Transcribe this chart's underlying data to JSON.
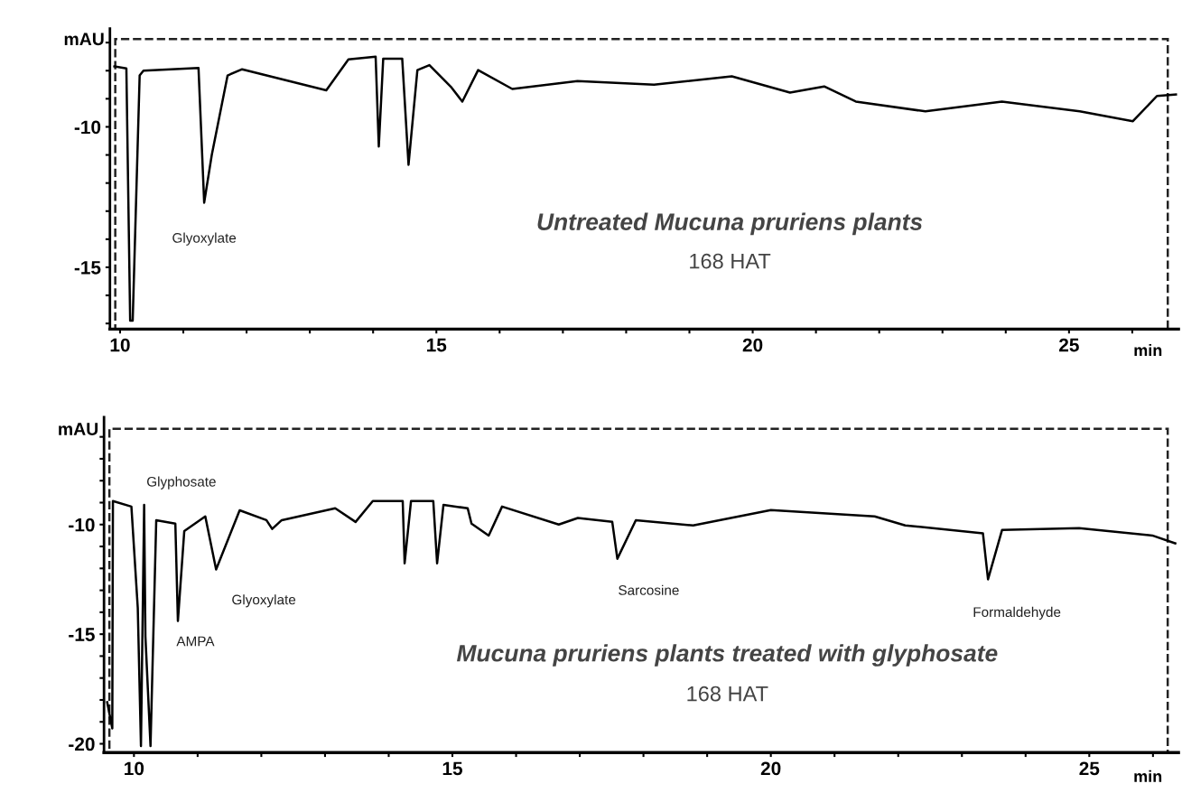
{
  "chart_data": [
    {
      "type": "line",
      "xlabel": "min",
      "ylabel": "mAU",
      "xlim": [
        9.84,
        26.73
      ],
      "ylim": [
        -17.2,
        -6.5
      ],
      "xticks": [
        10,
        {
          "value": 11,
          "label": null
        },
        {
          "value": 12,
          "label": null
        },
        {
          "value": 13,
          "label": null
        },
        {
          "value": 14,
          "label": null
        },
        15,
        {
          "value": 16,
          "label": null
        },
        {
          "value": 17,
          "label": null
        },
        {
          "value": 18,
          "label": null
        },
        {
          "value": 19,
          "label": null
        },
        20,
        {
          "value": 21,
          "label": null
        },
        {
          "value": 22,
          "label": null
        },
        {
          "value": 23,
          "label": null
        },
        {
          "value": 24,
          "label": null
        },
        25,
        {
          "value": 26,
          "label": null
        }
      ],
      "yticks": [
        {
          "value": -17,
          "label": null
        },
        {
          "value": -16,
          "label": null
        },
        -15,
        {
          "value": -14,
          "label": null
        },
        {
          "value": -13,
          "label": null
        },
        {
          "value": -12,
          "label": null
        },
        {
          "value": -11,
          "label": null
        },
        -10,
        {
          "value": -9,
          "label": null
        },
        {
          "value": -8,
          "label": null
        },
        {
          "value": -7,
          "label": null
        }
      ],
      "grid": false,
      "legend": false,
      "marker": "none",
      "line_style": "solid",
      "series": [
        {
          "color": "#000000",
          "x": [
            9.91,
            10.1,
            10.16,
            10.2,
            10.31,
            10.37,
            11.24,
            11.33,
            11.45,
            11.7,
            11.93,
            13.26,
            13.61,
            14.04,
            14.09,
            14.16,
            14.46,
            14.56,
            14.7,
            14.89,
            15.24,
            15.41,
            15.66,
            16.2,
            17.23,
            18.44,
            19.67,
            20.59,
            21.13,
            21.63,
            22.73,
            23.94,
            25.17,
            26.01,
            26.39,
            26.69
          ],
          "values": [
            -7.85,
            -7.92,
            -16.9,
            -16.9,
            -8.17,
            -8.0,
            -7.9,
            -12.7,
            -11.0,
            -8.17,
            -7.95,
            -8.7,
            -7.6,
            -7.5,
            -10.7,
            -7.57,
            -7.57,
            -11.35,
            -7.98,
            -7.8,
            -8.6,
            -9.1,
            -7.98,
            -8.65,
            -8.37,
            -8.5,
            -8.2,
            -8.78,
            -8.56,
            -9.1,
            -9.45,
            -9.1,
            -9.45,
            -9.8,
            -8.9,
            -8.85
          ]
        }
      ],
      "annotations": [
        {
          "text": "Glyoxylate",
          "x": 11.33,
          "y": -12.7
        },
        "Untreated Mucuna pruriens plants",
        "168 HAT"
      ]
    },
    {
      "type": "line",
      "xlabel": "min",
      "ylabel": "mAU",
      "xlim": [
        9.53,
        26.4
      ],
      "ylim": [
        -20.4,
        -5.1
      ],
      "xticks": [
        10,
        {
          "value": 11,
          "label": null
        },
        {
          "value": 12,
          "label": null
        },
        {
          "value": 13,
          "label": null
        },
        {
          "value": 14,
          "label": null
        },
        15,
        {
          "value": 16,
          "label": null
        },
        {
          "value": 17,
          "label": null
        },
        {
          "value": 18,
          "label": null
        },
        {
          "value": 19,
          "label": null
        },
        20,
        {
          "value": 21,
          "label": null
        },
        {
          "value": 22,
          "label": null
        },
        {
          "value": 23,
          "label": null
        },
        {
          "value": 24,
          "label": null
        },
        25,
        {
          "value": 26,
          "label": null
        }
      ],
      "yticks": [
        -20,
        {
          "value": -19,
          "label": null
        },
        {
          "value": -18,
          "label": null
        },
        {
          "value": -17,
          "label": null
        },
        {
          "value": -16,
          "label": null
        },
        -15,
        {
          "value": -14,
          "label": null
        },
        {
          "value": -13,
          "label": null
        },
        {
          "value": -12,
          "label": null
        },
        {
          "value": -11,
          "label": null
        },
        -10,
        {
          "value": -9,
          "label": null
        },
        {
          "value": -8,
          "label": null
        },
        {
          "value": -7,
          "label": null
        },
        {
          "value": -6,
          "label": null
        }
      ],
      "grid": false,
      "legend": false,
      "marker": "none",
      "line_style": "solid",
      "series": [
        {
          "color": "#000000",
          "x": [
            9.58,
            9.66,
            9.67,
            9.96,
            10.06,
            10.11,
            10.16,
            10.18,
            10.26,
            10.35,
            10.65,
            10.69,
            10.79,
            11.12,
            11.29,
            11.66,
            12.08,
            12.17,
            12.32,
            13.16,
            13.48,
            13.75,
            14.22,
            14.25,
            14.35,
            14.7,
            14.76,
            14.86,
            15.24,
            15.3,
            15.57,
            15.78,
            16.67,
            16.97,
            17.51,
            17.59,
            17.88,
            18.78,
            20.0,
            21.63,
            22.11,
            23.33,
            23.41,
            23.63,
            24.84,
            25.99,
            26.35
          ],
          "values": [
            -18.1,
            -19.3,
            -8.93,
            -9.18,
            -13.8,
            -20.1,
            -9.1,
            -15.1,
            -20.1,
            -9.8,
            -9.96,
            -14.4,
            -10.3,
            -9.63,
            -12.05,
            -9.35,
            -9.8,
            -10.2,
            -9.8,
            -9.26,
            -9.88,
            -8.93,
            -8.93,
            -11.77,
            -8.93,
            -8.93,
            -11.77,
            -9.1,
            -9.26,
            -9.96,
            -10.5,
            -9.18,
            -10.0,
            -9.7,
            -9.88,
            -11.56,
            -9.8,
            -10.04,
            -9.34,
            -9.63,
            -10.04,
            -10.4,
            -12.5,
            -10.25,
            -10.16,
            -10.5,
            -10.86
          ]
        }
      ],
      "annotations": [
        "Glyphosate",
        {
          "text": "AMPA",
          "x": 10.69,
          "y": -14.4
        },
        {
          "text": "Glyoxylate",
          "x": 11.29,
          "y": -12.05
        },
        {
          "text": "Sarcosine",
          "x": 17.59,
          "y": -11.56
        },
        {
          "text": "Formaldehyde",
          "x": 23.41,
          "y": -12.5
        },
        "Mucuna pruriens plants treated with glyphosate",
        "168 HAT"
      ]
    }
  ]
}
